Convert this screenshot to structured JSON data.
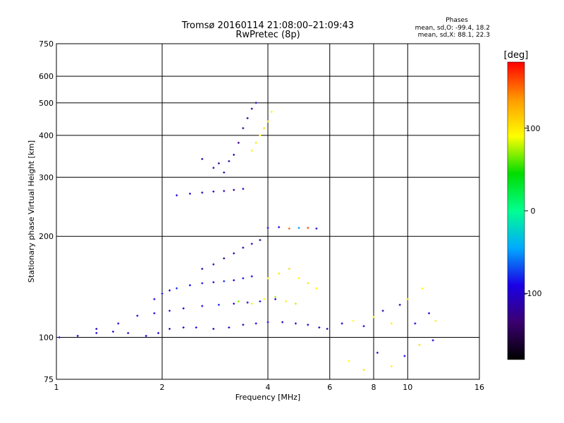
{
  "chart_data": {
    "type": "scatter",
    "title": "Tromsø 20160114 21:08:00–21:09:43",
    "subtitle": "RwPretec (8p)",
    "xlabel": "Frequency [MHz]",
    "ylabel": "Stationary phase Virtual Height [km]",
    "x_scale": "log",
    "y_scale": "log",
    "xlim": [
      1,
      16
    ],
    "ylim": [
      75,
      750
    ],
    "x_ticks": [
      "1",
      "2",
      "4",
      "6",
      "8",
      "10",
      "16"
    ],
    "y_ticks": [
      "75",
      "100",
      "200",
      "300",
      "400",
      "500",
      "600",
      "750"
    ],
    "x_tick_values": [
      1,
      2,
      4,
      6,
      8,
      10,
      16
    ],
    "y_tick_values": [
      75,
      100,
      200,
      300,
      400,
      500,
      600,
      750
    ],
    "grid": true,
    "stats": {
      "heading": "Phases",
      "line_o": "mean, sd,O: -99.4, 18.2",
      "line_x": "mean, sd,X:  88.1, 22.3"
    },
    "colorbar": {
      "label": "[deg]",
      "ticks": [
        "100",
        "0",
        "-100"
      ],
      "tick_values": [
        100,
        0,
        -100
      ],
      "range": [
        -180,
        180
      ],
      "colors": [
        "#000000",
        "#3b0070",
        "#1a00e6",
        "#00aaff",
        "#00ff90",
        "#00dd00",
        "#ffff00",
        "#ff9900",
        "#ff0000"
      ]
    },
    "series": [
      {
        "x": [
          1.02,
          1.15,
          1.3,
          1.45,
          1.6,
          1.8,
          1.95,
          2.1,
          2.3,
          2.5,
          2.8,
          3.1,
          3.4,
          3.7,
          4.0,
          4.4,
          4.8,
          5.2,
          5.6,
          5.9
        ],
        "y": [
          100,
          101,
          103,
          104,
          103,
          101,
          103,
          106,
          107,
          107,
          106,
          107,
          109,
          110,
          111,
          111,
          110,
          109,
          107,
          106
        ],
        "phase": [
          -100,
          -110,
          -95,
          -100,
          -105,
          -95,
          -100,
          -110,
          -100,
          -95,
          -105,
          -100,
          -110,
          -100,
          -95,
          -105,
          -100,
          -95,
          -110,
          -100
        ]
      },
      {
        "x": [
          1.3,
          1.5,
          1.7,
          1.9,
          2.1,
          2.3,
          2.6,
          2.9,
          3.2,
          3.5,
          3.8,
          4.2
        ],
        "y": [
          106,
          110,
          116,
          118,
          120,
          122,
          124,
          125,
          126,
          127,
          128,
          130
        ],
        "phase": [
          -100,
          -95,
          -90,
          -100,
          -85,
          -95,
          -90,
          -80,
          -100,
          -90,
          -85,
          -95
        ]
      },
      {
        "x": [
          1.9,
          2.0,
          2.1,
          2.2,
          2.4,
          2.6,
          2.8,
          3.0,
          3.2,
          3.4,
          3.6
        ],
        "y": [
          130,
          135,
          138,
          140,
          143,
          145,
          146,
          147,
          148,
          150,
          152
        ],
        "phase": [
          -90,
          -85,
          -95,
          -80,
          -90,
          -85,
          -95,
          -80,
          -90,
          -85,
          -95
        ]
      },
      {
        "x": [
          2.6,
          2.8,
          3.0,
          3.2,
          3.4,
          3.6,
          3.8
        ],
        "y": [
          160,
          165,
          172,
          178,
          185,
          190,
          195
        ],
        "phase": [
          -120,
          -110,
          -125,
          -115,
          -120,
          -110,
          -125
        ]
      },
      {
        "x": [
          2.2,
          2.4,
          2.6,
          2.8,
          3.0,
          3.2,
          3.4
        ],
        "y": [
          265,
          268,
          270,
          272,
          273,
          275,
          277
        ],
        "phase": [
          -95,
          -100,
          -105,
          -95,
          -110,
          -120,
          -100
        ]
      },
      {
        "x": [
          2.6,
          2.8,
          2.9,
          3.0,
          3.1,
          3.2,
          3.3,
          3.4,
          3.5,
          3.6,
          3.7
        ],
        "y": [
          340,
          320,
          330,
          310,
          335,
          350,
          380,
          420,
          450,
          480,
          500
        ],
        "phase": [
          -110,
          -120,
          -125,
          -115,
          -120,
          -110,
          -125,
          -115,
          -120,
          -110,
          -105
        ]
      },
      {
        "x": [
          3.6,
          3.7,
          3.8,
          3.9,
          4.0,
          4.1
        ],
        "y": [
          360,
          380,
          400,
          420,
          440,
          470
        ],
        "phase": [
          95,
          100,
          90,
          105,
          110,
          95
        ]
      },
      {
        "x": [
          4.0,
          4.3,
          4.6,
          4.9,
          5.2,
          5.5
        ],
        "y": [
          150,
          155,
          160,
          150,
          145,
          140
        ],
        "phase": [
          95,
          100,
          105,
          90,
          100,
          95
        ]
      },
      {
        "x": [
          3.3,
          3.6,
          3.9,
          4.2,
          4.5,
          4.8
        ],
        "y": [
          128,
          126,
          130,
          132,
          128,
          126
        ],
        "phase": [
          70,
          85,
          90,
          75,
          95,
          80
        ]
      },
      {
        "x": [
          4.0,
          4.3,
          4.6,
          4.9,
          5.2,
          5.5
        ],
        "y": [
          212,
          213,
          211,
          212,
          212,
          211
        ],
        "phase": [
          -100,
          -90,
          150,
          -50,
          160,
          -95
        ]
      },
      {
        "x": [
          6.5,
          7.0,
          7.5,
          8.0,
          8.5,
          9.0,
          9.5,
          10.0,
          10.5,
          11.0,
          11.5,
          12.0
        ],
        "y": [
          110,
          112,
          108,
          115,
          120,
          110,
          125,
          130,
          110,
          140,
          118,
          112
        ],
        "phase": [
          -100,
          90,
          -95,
          100,
          -110,
          95,
          -100,
          105,
          -95,
          90,
          -100,
          95
        ]
      },
      {
        "x": [
          6.8,
          7.5,
          8.2,
          9.0,
          9.8,
          10.8,
          11.8
        ],
        "y": [
          85,
          80,
          90,
          82,
          88,
          95,
          98
        ],
        "phase": [
          90,
          100,
          -100,
          95,
          -90,
          105,
          -95
        ]
      }
    ]
  }
}
